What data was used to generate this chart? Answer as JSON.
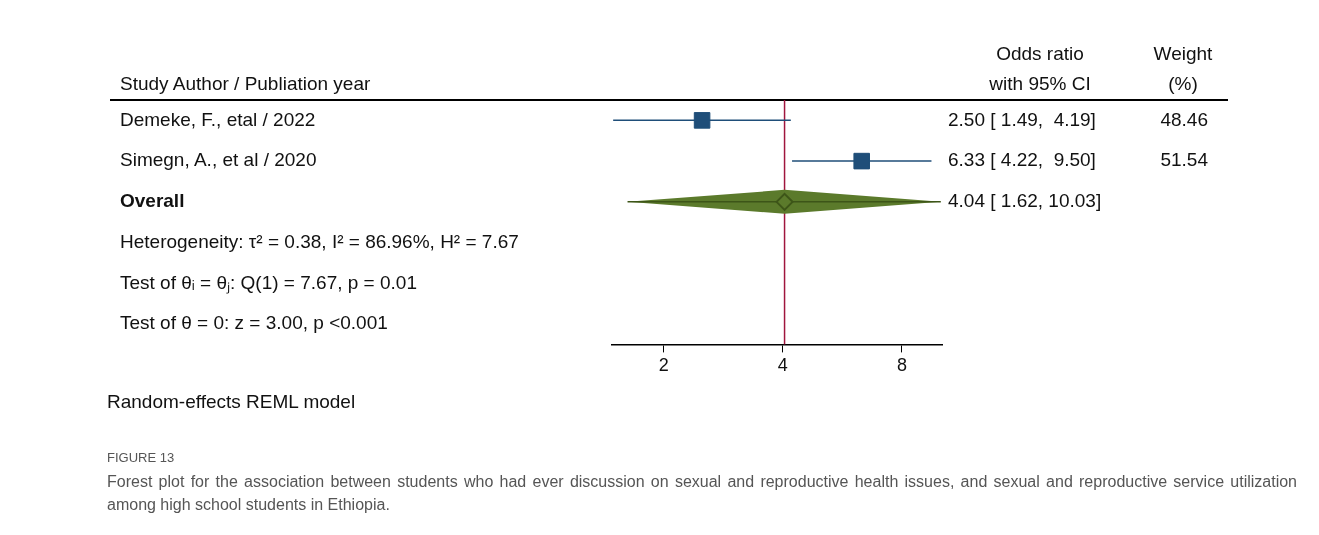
{
  "chart_data": {
    "type": "scatter",
    "orientation": "horizontal",
    "categories": [
      "Demeke, F., etal / 2022",
      "Simegn, A., et al / 2020",
      "Overall",
      "Heterogeneity: τ² = 0.38, I² = 86.96%, H² = 7.67",
      "Test of θᵢ = θⱼ: Q(1) = 7.67, p = 0.01",
      "Test of θ = 0: z = 3.00, p <0.001"
    ],
    "log": "x",
    "xlim": [
      1.48,
      10.1
    ],
    "xticks": [
      2,
      4,
      8
    ],
    "series": [
      {
        "type": "scatter",
        "marker": "square",
        "color": "#1f4e79",
        "values": [
          2.5,
          6.33,
          null,
          null,
          null,
          null
        ],
        "errors": [
          [
            1.49,
            4.19
          ],
          [
            4.22,
            9.5
          ],
          null,
          null,
          null,
          null
        ],
        "value_labels": [
          "2.50 [ 1.49,  4.19]",
          "6.33 [ 4.22,  9.50]",
          null,
          null,
          null,
          null
        ]
      },
      {
        "type": "scatter",
        "marker": "diamond",
        "color": "#5b7a2b",
        "values": [
          null,
          null,
          4.04,
          null,
          null,
          null
        ],
        "errors": [
          null,
          null,
          [
            1.62,
            10.03
          ],
          null,
          null,
          null
        ],
        "value_labels": [
          null,
          null,
          "4.04 [ 1.62, 10.03]",
          null,
          null,
          null
        ]
      }
    ],
    "ref_lines": [
      {
        "axis": "x",
        "value": 4.04,
        "color": "#a0153e"
      }
    ],
    "annotations": [
      "Study Author / Publiation  year",
      "Odds ratio",
      "with 95% CI",
      "Weight",
      "(%)",
      "Random-effects REML model",
      "FIGURE 13",
      "Forest plot for the association between students who had ever discussion on sexual and reproductive health issues, and sexual and reproductive service utilization among high school students in Ethiopia.",
      "48.46",
      "51.54"
    ]
  }
}
